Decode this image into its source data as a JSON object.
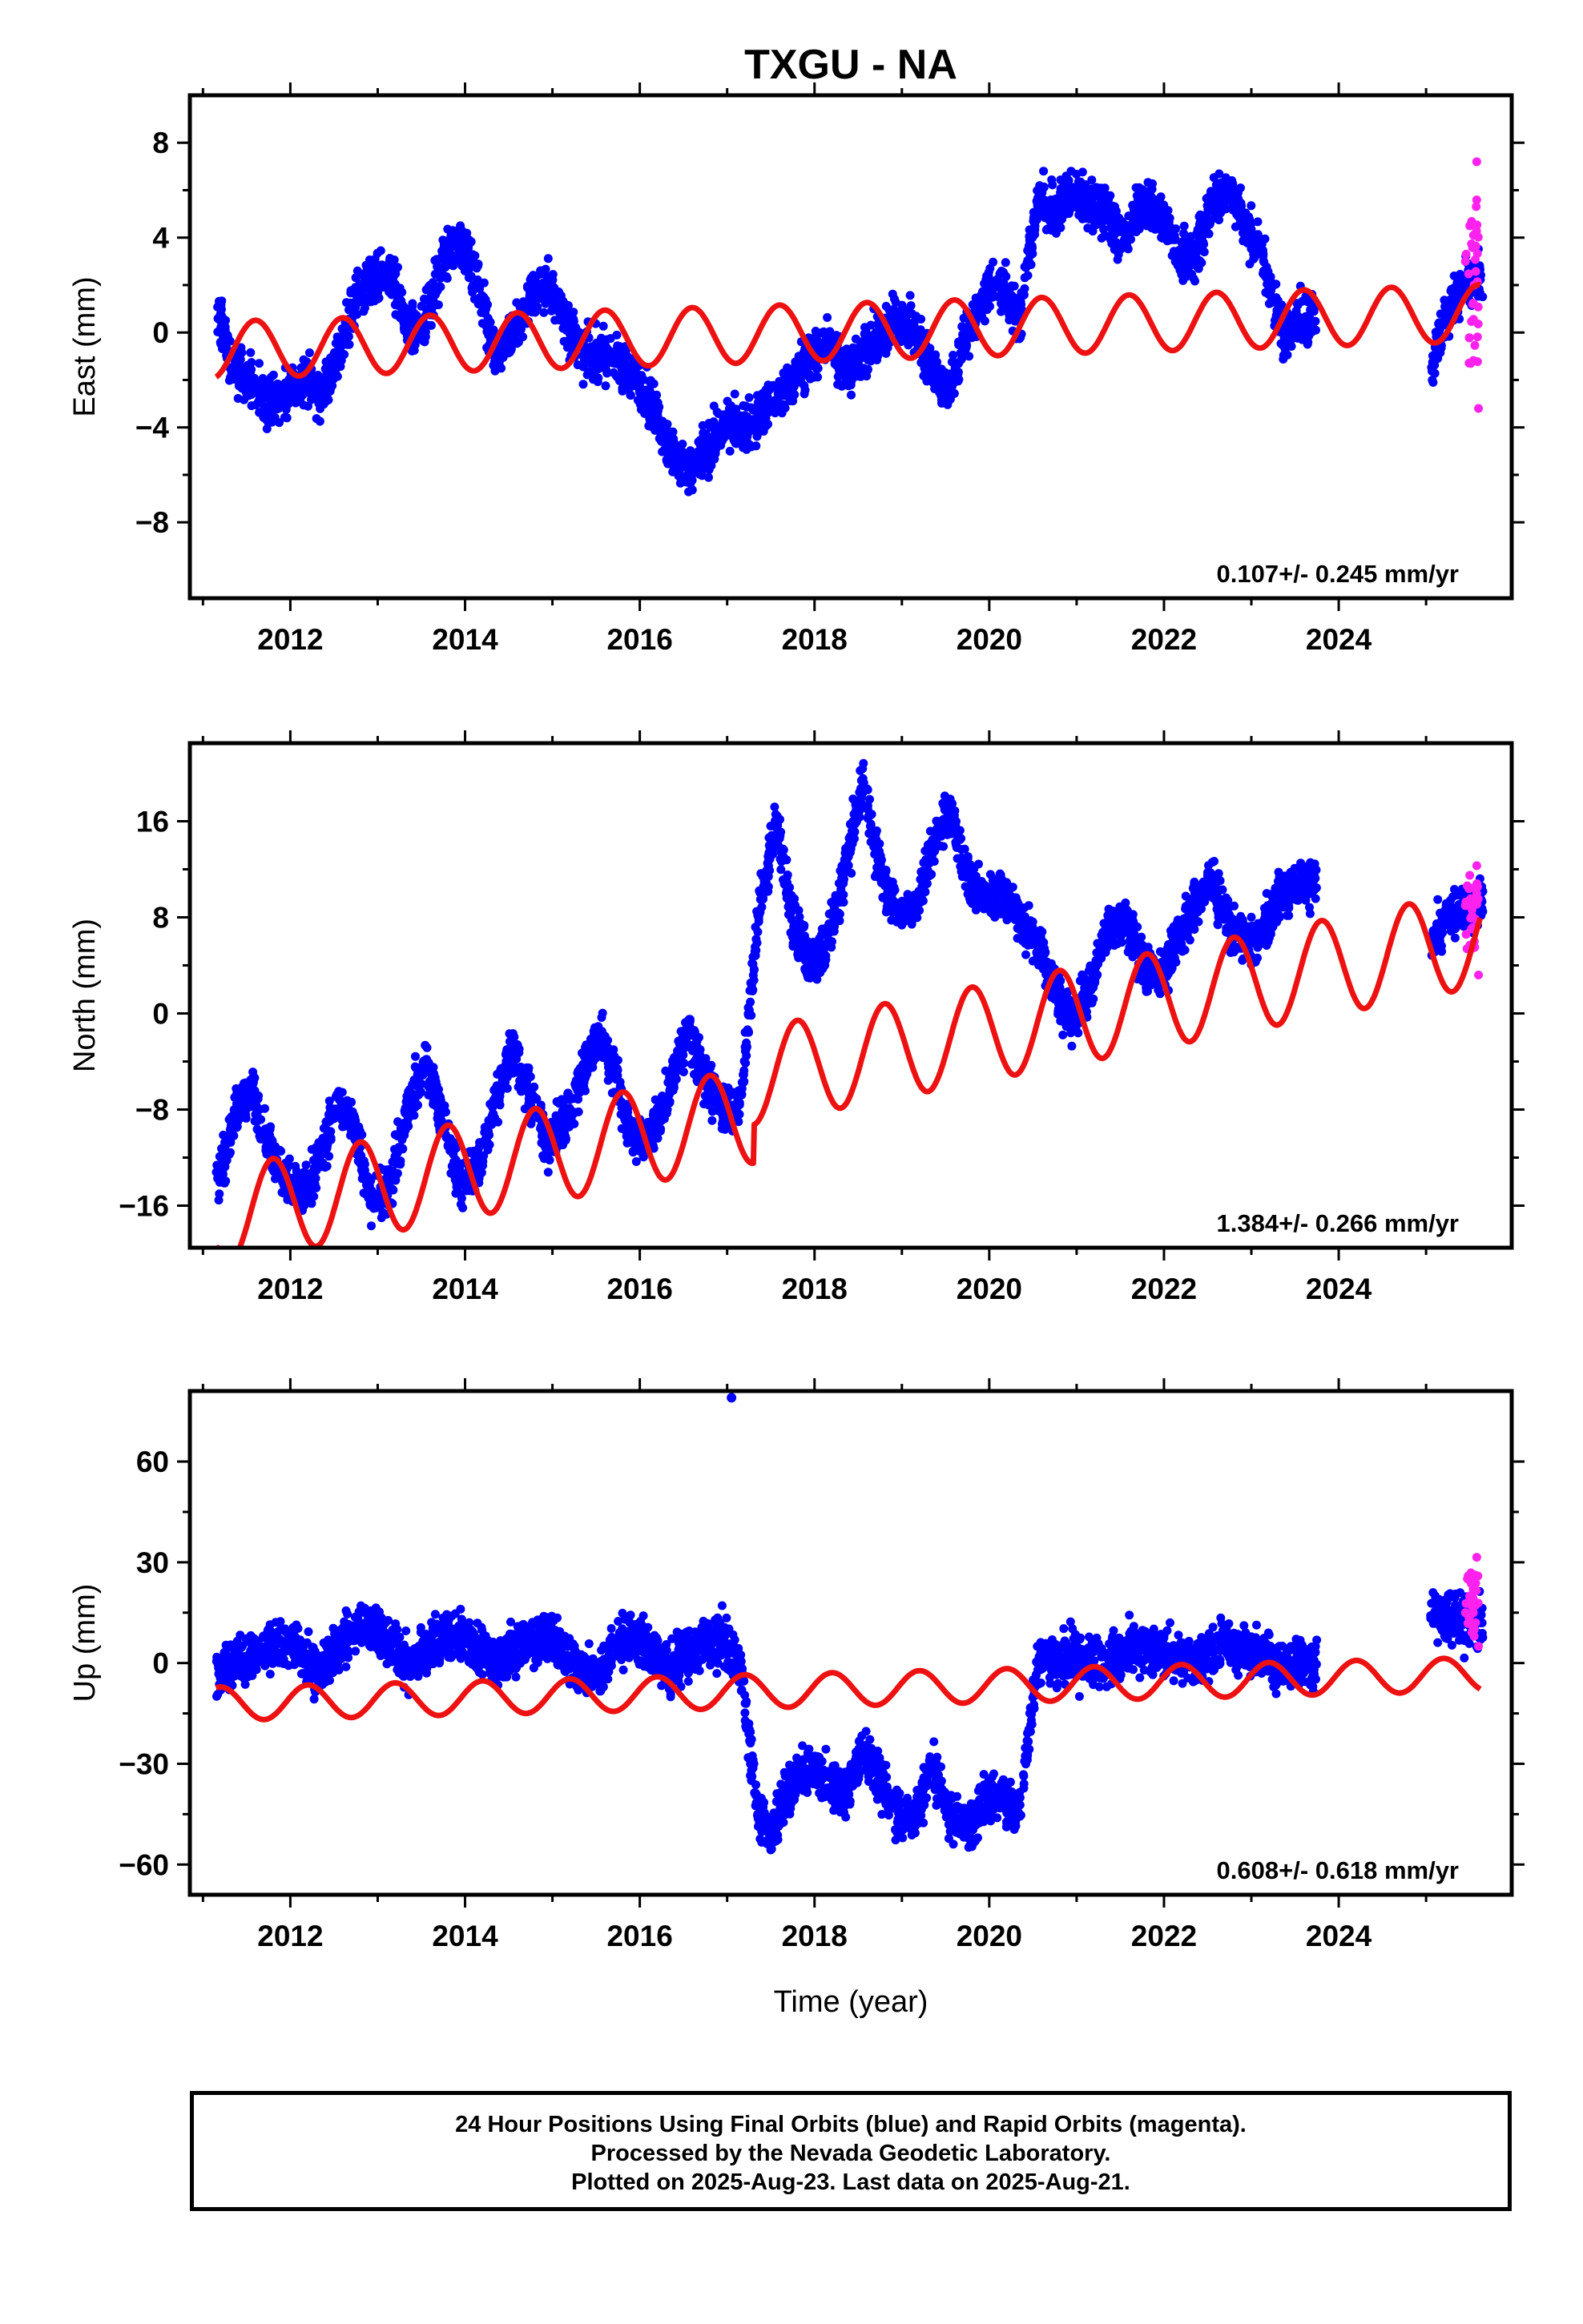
{
  "figure": {
    "title": "TXGU - NA",
    "xlabel": "Time (year)",
    "colors": {
      "final_orbits": "#0000ff",
      "rapid_orbits": "#ff22ee",
      "model": "#ee1111",
      "frame": "#000000"
    }
  },
  "chart_data": [
    {
      "type": "scatter",
      "name": "east-panel",
      "ylabel": "East (mm)",
      "rate_label": "0.107+/- 0.245 mm/yr",
      "xlim": [
        2010.85,
        2025.98
      ],
      "ylim": [
        -11.2,
        10.0
      ],
      "x_ticks": [
        2012,
        2014,
        2016,
        2018,
        2020,
        2022,
        2024
      ],
      "x_tick_labels": [
        "2012",
        "2014",
        "2016",
        "2018",
        "2020",
        "2022",
        "2024"
      ],
      "y_ticks": [
        -8,
        -4,
        0,
        4,
        8
      ],
      "y_tick_labels": [
        "−8",
        "−4",
        "0",
        "4",
        "8"
      ],
      "series": [
        {
          "role": "final",
          "color": "#0000ff",
          "x": [
            2011.15,
            2011.35,
            2011.55,
            2011.75,
            2011.95,
            2012.15,
            2012.35,
            2012.55,
            2012.75,
            2012.95,
            2013.15,
            2013.35,
            2013.55,
            2013.75,
            2013.95,
            2014.15,
            2014.35,
            2014.55,
            2014.75,
            2014.95,
            2015.15,
            2015.35,
            2015.55,
            2015.75,
            2015.95,
            2016.15,
            2016.35,
            2016.55,
            2016.75,
            2016.95,
            2017.15,
            2017.35,
            2017.55,
            2017.75,
            2017.95,
            2018.15,
            2018.35,
            2018.55,
            2018.75,
            2018.95,
            2019.15,
            2019.35,
            2019.55,
            2019.75,
            2019.95,
            2020.15,
            2020.35,
            2020.55,
            2020.75,
            2020.95,
            2021.15,
            2021.35,
            2021.55,
            2021.75,
            2021.95,
            2022.15,
            2022.35,
            2022.55,
            2022.75,
            2022.95,
            2023.15,
            2023.35,
            2023.55,
            2025.05,
            2025.25,
            2025.45
          ],
          "y": [
            1.0,
            -1.5,
            -2.0,
            -3.0,
            -2.5,
            -2.0,
            -2.5,
            -1.0,
            1.5,
            2.0,
            2.5,
            0.0,
            0.5,
            3.0,
            4.0,
            2.0,
            -1.0,
            0.0,
            1.5,
            2.0,
            0.5,
            -1.0,
            -1.0,
            -1.0,
            -2.0,
            -3.0,
            -5.0,
            -6.0,
            -5.0,
            -4.0,
            -4.0,
            -3.5,
            -3.0,
            -2.0,
            -1.0,
            -0.5,
            -1.5,
            -1.0,
            0.0,
            0.5,
            0.0,
            -1.5,
            -2.5,
            0.0,
            1.5,
            2.0,
            0.5,
            5.5,
            5.0,
            6.0,
            5.5,
            5.0,
            4.0,
            5.5,
            5.0,
            3.5,
            3.0,
            5.5,
            6.0,
            4.5,
            3.0,
            0.0,
            0.5,
            -1.5,
            1.0,
            2.0
          ]
        },
        {
          "role": "rapid",
          "color": "#ff22ee",
          "x": [
            2025.45,
            2025.5,
            2025.55,
            2025.58,
            2025.6
          ],
          "y": [
            3.0,
            4.5,
            2.0,
            7.2,
            -3.2
          ]
        },
        {
          "role": "model",
          "color": "#ee1111",
          "mean": 0.0,
          "slope": 0.107,
          "amplitude": 1.2,
          "phase_year": 0.35,
          "x_start": 2011.15,
          "x_end": 2025.62
        }
      ]
    },
    {
      "type": "scatter",
      "name": "north-panel",
      "ylabel": "North (mm)",
      "rate_label": "1.384+/- 0.266 mm/yr",
      "xlim": [
        2010.85,
        2025.98
      ],
      "ylim": [
        -19.5,
        22.5
      ],
      "x_ticks": [
        2012,
        2014,
        2016,
        2018,
        2020,
        2022,
        2024
      ],
      "x_tick_labels": [
        "2012",
        "2014",
        "2016",
        "2018",
        "2020",
        "2022",
        "2024"
      ],
      "y_ticks": [
        -16,
        -8,
        0,
        8,
        16
      ],
      "y_tick_labels": [
        "−16",
        "−8",
        "0",
        "8",
        "16"
      ],
      "series": [
        {
          "role": "final",
          "color": "#0000ff",
          "x": [
            2011.15,
            2011.35,
            2011.55,
            2011.75,
            2011.95,
            2012.15,
            2012.35,
            2012.55,
            2012.75,
            2012.95,
            2013.15,
            2013.35,
            2013.55,
            2013.75,
            2013.95,
            2014.15,
            2014.35,
            2014.55,
            2014.75,
            2014.95,
            2015.15,
            2015.35,
            2015.55,
            2015.75,
            2015.95,
            2016.15,
            2016.35,
            2016.55,
            2016.75,
            2016.95,
            2017.15,
            2017.35,
            2017.55,
            2017.75,
            2017.95,
            2018.15,
            2018.35,
            2018.55,
            2018.75,
            2018.95,
            2019.15,
            2019.35,
            2019.55,
            2019.75,
            2019.95,
            2020.15,
            2020.35,
            2020.55,
            2020.75,
            2020.95,
            2021.15,
            2021.35,
            2021.55,
            2021.75,
            2021.95,
            2022.15,
            2022.35,
            2022.55,
            2022.75,
            2022.95,
            2023.15,
            2023.35,
            2023.55,
            2025.05,
            2025.25,
            2025.45
          ],
          "y": [
            -14.5,
            -9.0,
            -6.0,
            -11.0,
            -14.0,
            -15.0,
            -12.0,
            -7.0,
            -10.0,
            -16.0,
            -14.0,
            -8.0,
            -4.0,
            -9.0,
            -14.0,
            -13.0,
            -7.0,
            -3.0,
            -7.0,
            -11.0,
            -9.0,
            -5.0,
            -1.5,
            -6.0,
            -11.0,
            -10.0,
            -6.0,
            -1.5,
            -5.5,
            -8.0,
            -8.0,
            8.0,
            16.0,
            8.0,
            4.0,
            6.0,
            12.0,
            19.0,
            12.0,
            8.0,
            9.0,
            14.0,
            17.0,
            11.0,
            10.0,
            10.0,
            8.0,
            6.0,
            2.0,
            -0.5,
            2.0,
            7.0,
            8.0,
            4.0,
            3.0,
            6.0,
            9.0,
            11.0,
            7.0,
            6.0,
            7.0,
            10.0,
            11.0,
            6.0,
            8.0,
            9.0
          ]
        },
        {
          "role": "rapid",
          "color": "#ff22ee",
          "x": [
            2025.45,
            2025.5,
            2025.55,
            2025.58,
            2025.6
          ],
          "y": [
            9.0,
            11.5,
            7.0,
            12.3,
            3.2
          ]
        },
        {
          "role": "model",
          "color": "#ee1111",
          "mean": -7.5,
          "slope": 1.384,
          "amplitude": 4.0,
          "phase_year": 0.55,
          "offsets": [
            {
              "x": 2017.3,
              "dy": 3.2
            }
          ],
          "x_start": 2011.15,
          "x_end": 2025.62
        }
      ]
    },
    {
      "type": "scatter",
      "name": "up-panel",
      "ylabel": "Up (mm)",
      "rate_label": "0.608+/- 0.618 mm/yr",
      "xlim": [
        2010.85,
        2025.98
      ],
      "ylim": [
        -69.0,
        81.0
      ],
      "x_ticks": [
        2012,
        2014,
        2016,
        2018,
        2020,
        2022,
        2024
      ],
      "x_tick_labels": [
        "2012",
        "2014",
        "2016",
        "2018",
        "2020",
        "2022",
        "2024"
      ],
      "y_ticks": [
        -60,
        -30,
        0,
        30,
        60
      ],
      "y_tick_labels": [
        "−60",
        "−30",
        "0",
        "30",
        "60"
      ],
      "series": [
        {
          "role": "final",
          "color": "#0000ff",
          "x": [
            2011.15,
            2011.35,
            2011.55,
            2011.75,
            2011.95,
            2012.15,
            2012.35,
            2012.55,
            2012.75,
            2012.95,
            2013.15,
            2013.35,
            2013.55,
            2013.75,
            2013.95,
            2014.15,
            2014.35,
            2014.55,
            2014.75,
            2014.95,
            2015.15,
            2015.35,
            2015.55,
            2015.75,
            2015.95,
            2016.15,
            2016.35,
            2016.55,
            2016.75,
            2016.95,
            2017.15,
            2017.35,
            2017.55,
            2017.75,
            2017.95,
            2018.15,
            2018.35,
            2018.55,
            2018.75,
            2018.95,
            2019.15,
            2019.35,
            2019.55,
            2019.75,
            2019.95,
            2020.15,
            2020.35,
            2020.55,
            2020.75,
            2020.95,
            2021.15,
            2021.35,
            2021.55,
            2021.75,
            2021.95,
            2022.15,
            2022.35,
            2022.55,
            2022.75,
            2022.95,
            2023.15,
            2023.35,
            2023.55,
            2025.05,
            2025.25,
            2025.45
          ],
          "y": [
            -3.0,
            0.0,
            2.0,
            5.0,
            6.0,
            3.0,
            -2.0,
            5.0,
            10.0,
            10.0,
            5.0,
            0.0,
            4.0,
            8.0,
            8.0,
            4.0,
            0.0,
            3.0,
            8.0,
            8.0,
            2.0,
            -3.0,
            -3.0,
            6.0,
            8.0,
            3.0,
            -2.0,
            2.0,
            6.0,
            7.0,
            0.0,
            -45.0,
            -50.0,
            -35.0,
            -30.0,
            -35.0,
            -40.0,
            -25.0,
            -35.0,
            -45.0,
            -45.0,
            -30.0,
            -45.0,
            -50.0,
            -40.0,
            -40.0,
            -45.0,
            0.0,
            0.0,
            2.0,
            0.0,
            0.0,
            4.0,
            5.0,
            3.0,
            2.0,
            0.0,
            4.0,
            6.0,
            3.0,
            2.0,
            0.0,
            0.0,
            15.0,
            14.0,
            12.0
          ]
        },
        {
          "role": "rapid",
          "color": "#ff22ee",
          "x": [
            2025.45,
            2025.5,
            2025.55,
            2025.58,
            2025.6
          ],
          "y": [
            15.0,
            20.0,
            8.0,
            31.5,
            5.0
          ]
        },
        {
          "role": "model",
          "color": "#ee1111",
          "mean": -8.0,
          "slope": 0.608,
          "amplitude": 5.0,
          "phase_year": 0.95,
          "x_start": 2011.15,
          "x_end": 2025.62
        }
      ],
      "outlier": {
        "x": 2017.05,
        "y": 79.0
      }
    }
  ],
  "footer": {
    "line1": "24 Hour Positions Using Final Orbits (blue) and Rapid Orbits (magenta).",
    "line2": "Processed by the Nevada Geodetic Laboratory.",
    "line3": "Plotted on 2025-Aug-23. Last data on 2025-Aug-21."
  }
}
